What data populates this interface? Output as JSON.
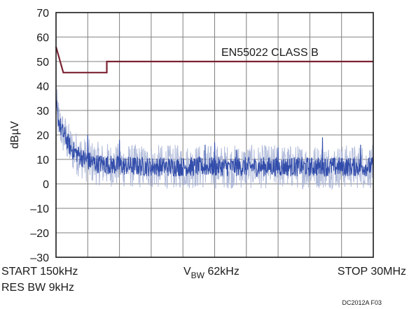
{
  "chart_data": {
    "type": "line",
    "title": "",
    "ylabel": "dBµV",
    "ylim": [
      -30,
      70
    ],
    "yticks": [
      70,
      60,
      50,
      40,
      30,
      20,
      10,
      0,
      -10,
      -20,
      -30
    ],
    "ytick_labels": [
      "70",
      "60",
      "50",
      "40",
      "30",
      "20",
      "10",
      "0",
      "–10",
      "–20",
      "–30"
    ],
    "grid": true,
    "x_divisions": 10,
    "x_bottom_labels": {
      "start": "START 150kHz",
      "center_main": "V",
      "center_sub": "BW",
      "center_rest": " 62kHz",
      "stop": "STOP 30MHz",
      "res_bw": "RES BW 9kHz"
    },
    "figure_id": "DC2012A F03",
    "colors": {
      "limit": "#7a2232",
      "trace_dark": "#2a46a8",
      "trace_light": "#a9b4d6",
      "grid": "#7f7f7f"
    },
    "limit_line": {
      "name": "EN55022 CLASS B",
      "x_div": [
        0,
        0.23,
        1.6,
        1.6,
        10
      ],
      "y": [
        56,
        45.5,
        45.5,
        50,
        50
      ]
    },
    "noise_trace": {
      "description_points": [
        [
          0.0,
          33
        ],
        [
          0.05,
          28
        ],
        [
          0.1,
          25
        ],
        [
          0.2,
          21
        ],
        [
          0.3,
          19
        ],
        [
          0.4,
          16
        ],
        [
          0.5,
          14
        ],
        [
          0.6,
          13
        ],
        [
          0.7,
          12
        ],
        [
          0.8,
          11
        ],
        [
          0.9,
          10
        ],
        [
          1.0,
          9.5
        ],
        [
          1.2,
          8.5
        ],
        [
          1.5,
          8
        ],
        [
          2.0,
          7.5
        ],
        [
          3.0,
          7
        ],
        [
          4.0,
          7
        ],
        [
          5.0,
          7
        ],
        [
          6.0,
          7
        ],
        [
          7.0,
          7
        ],
        [
          8.0,
          7
        ],
        [
          9.0,
          7
        ],
        [
          10.0,
          7
        ]
      ],
      "spread_dark": 4,
      "spread_light": 9,
      "spikes": [
        [
          1.0,
          20
        ],
        [
          2.0,
          18
        ],
        [
          4.7,
          16
        ],
        [
          5.0,
          17
        ],
        [
          5.7,
          14
        ],
        [
          7.0,
          15
        ],
        [
          8.4,
          19
        ],
        [
          9.6,
          16
        ]
      ]
    }
  }
}
